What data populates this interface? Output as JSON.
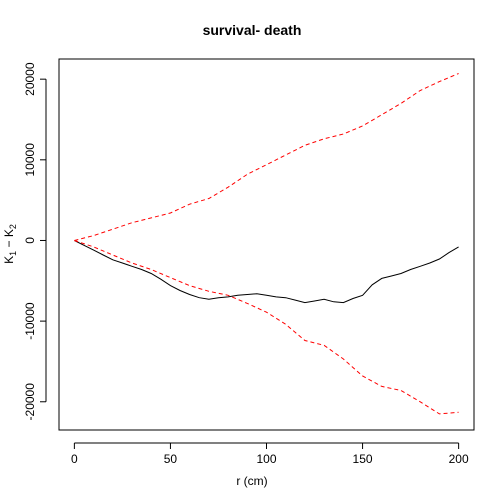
{
  "chart_data": {
    "type": "line",
    "title": "survival- death",
    "xlabel": "r (cm)",
    "ylabel": {
      "k1": "K",
      "s1": "1",
      "op": " − ",
      "k2": "K",
      "s2": "2"
    },
    "xlim": [
      -8,
      208
    ],
    "ylim": [
      -23500,
      22500
    ],
    "x_ticks": [
      0,
      50,
      100,
      150,
      200
    ],
    "y_ticks": [
      -20000,
      -10000,
      0,
      10000,
      20000
    ],
    "grid": false,
    "legend": "none",
    "series": [
      {
        "style": "solid",
        "color": "#000000",
        "x": [
          0,
          5,
          10,
          15,
          20,
          25,
          30,
          35,
          40,
          45,
          50,
          55,
          60,
          65,
          70,
          75,
          80,
          85,
          90,
          95,
          100,
          105,
          110,
          115,
          120,
          125,
          130,
          135,
          140,
          145,
          150,
          155,
          160,
          165,
          170,
          175,
          180,
          185,
          190,
          195,
          200
        ],
        "y": [
          0,
          -600,
          -1200,
          -1800,
          -2400,
          -2800,
          -3200,
          -3600,
          -4100,
          -4800,
          -5600,
          -6200,
          -6700,
          -7100,
          -7300,
          -7100,
          -7000,
          -6800,
          -6700,
          -6600,
          -6800,
          -7000,
          -7100,
          -7400,
          -7700,
          -7500,
          -7300,
          -7600,
          -7700,
          -7200,
          -6800,
          -5500,
          -4700,
          -4400,
          -4100,
          -3600,
          -3200,
          -2800,
          -2300,
          -1500,
          -800
        ]
      },
      {
        "style": "dashed",
        "color": "#ff0000",
        "x": [
          0,
          10,
          20,
          30,
          40,
          50,
          60,
          70,
          80,
          90,
          100,
          110,
          120,
          130,
          140,
          150,
          160,
          170,
          180,
          190,
          200
        ],
        "y": [
          0,
          600,
          1400,
          2200,
          2800,
          3400,
          4500,
          5200,
          6600,
          8200,
          9400,
          10600,
          11800,
          12600,
          13200,
          14200,
          15600,
          17000,
          18600,
          19700,
          20700
        ]
      },
      {
        "style": "dashed",
        "color": "#ff0000",
        "x": [
          0,
          10,
          20,
          30,
          40,
          50,
          60,
          70,
          80,
          90,
          100,
          110,
          120,
          130,
          140,
          150,
          160,
          170,
          180,
          190,
          200
        ],
        "y": [
          0,
          -800,
          -1800,
          -2800,
          -3600,
          -4600,
          -5600,
          -6300,
          -6800,
          -7800,
          -8900,
          -10400,
          -12400,
          -13000,
          -14700,
          -16800,
          -18100,
          -18600,
          -20000,
          -21500,
          -21300
        ]
      }
    ]
  }
}
